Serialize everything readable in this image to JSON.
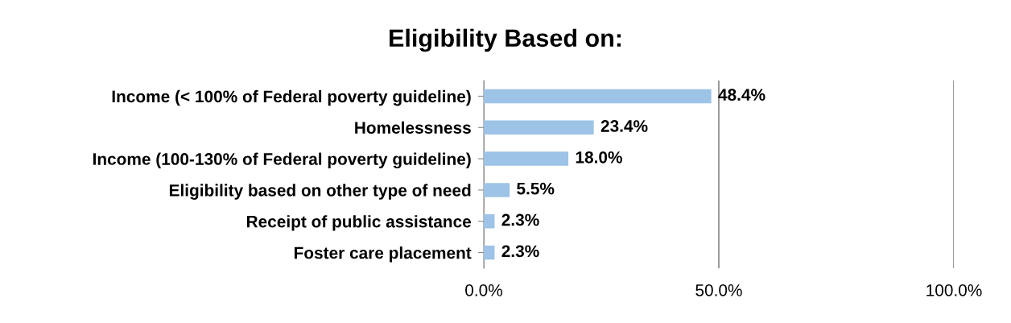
{
  "chart_data": {
    "type": "bar",
    "orientation": "horizontal",
    "title": "Eligibility Based on:",
    "categories": [
      "Income (< 100% of Federal poverty guideline)",
      "Homelessness",
      "Income (100-130% of Federal poverty guideline)",
      "Eligibility based on other type of need",
      "Receipt of public assistance",
      "Foster care placement"
    ],
    "values": [
      48.4,
      23.4,
      18.0,
      5.5,
      2.3,
      2.3
    ],
    "value_labels": [
      "48.4%",
      "23.4%",
      "18.0%",
      "5.5%",
      "2.3%",
      "2.3%"
    ],
    "color": "#9dc3e6",
    "xlim": [
      0,
      100
    ],
    "xticks": [
      {
        "value": 0,
        "label": "0.0%"
      },
      {
        "value": 50,
        "label": "50.0%"
      },
      {
        "value": 100,
        "label": "100.0%"
      }
    ],
    "grid": "x",
    "legend": false
  }
}
